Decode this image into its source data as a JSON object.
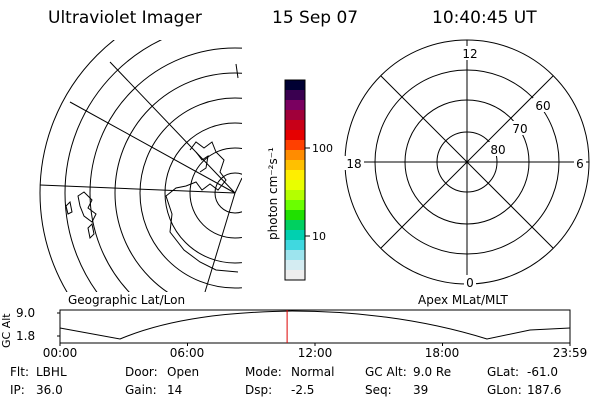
{
  "header": {
    "instrument": "Ultraviolet Imager",
    "date": "15 Sep 07",
    "time": "10:40:45 UT"
  },
  "left_panel": {
    "label": "Geographic Lat/Lon"
  },
  "right_panel": {
    "label": "Apex MLat/MLT",
    "mlt_labels": {
      "top": "12",
      "bottom": "0",
      "left": "18",
      "right": "6"
    },
    "lat_labels": [
      "60",
      "70",
      "80"
    ]
  },
  "colorbar": {
    "unit_label": "photon cm⁻²s⁻¹",
    "ticks": [
      "100",
      "10"
    ],
    "scale": "log",
    "colors": [
      "#000033",
      "#3a0050",
      "#7a0060",
      "#a0003a",
      "#c80018",
      "#e60000",
      "#ff4000",
      "#ff8c00",
      "#ffc000",
      "#ffee00",
      "#e8ff00",
      "#b4ff00",
      "#6aff00",
      "#20e000",
      "#00d060",
      "#00d0b0",
      "#40d8e0",
      "#9de4ee",
      "#d4ecf2",
      "#eeeeee"
    ]
  },
  "altitude_plot": {
    "ylabel": "GC Alt",
    "yticks": [
      "9.0",
      "1.8"
    ],
    "xticks": [
      "00:00",
      "06:00",
      "12:00",
      "18:00",
      "23:59"
    ],
    "marker_time": "10:40:45",
    "marker_color": "#dd0000"
  },
  "info": {
    "row1": [
      {
        "key": "Flt:",
        "value": "LBHL"
      },
      {
        "key": "Door:",
        "value": "Open"
      },
      {
        "key": "Mode:",
        "value": "Normal"
      },
      {
        "key": "GC Alt:",
        "value": "9.0 Re"
      },
      {
        "key": "GLat:",
        "value": "-61.0"
      }
    ],
    "row2": [
      {
        "key": "IP:",
        "value": "36.0"
      },
      {
        "key": "Gain:",
        "value": "14"
      },
      {
        "key": "Dsp:",
        "value": "-2.5"
      },
      {
        "key": "Seq:",
        "value": "39"
      },
      {
        "key": "GLon:",
        "value": "187.6"
      }
    ]
  }
}
